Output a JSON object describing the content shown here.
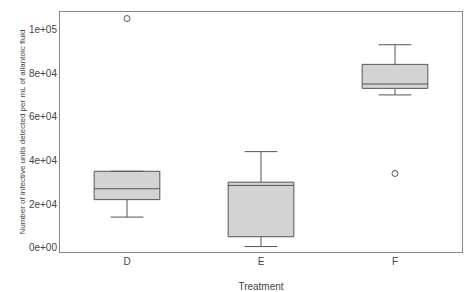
{
  "chart_data": {
    "type": "box",
    "xlabel": "Treatment",
    "ylabel": "Number of infective units detected per mL of allantoic fluid",
    "categories": [
      "D",
      "E",
      "F"
    ],
    "boxes": [
      {
        "whislo": 14000,
        "q1": 22000,
        "med": 27000,
        "q3": 35000,
        "whishi": 35000,
        "fliers": [
          105000
        ]
      },
      {
        "whislo": 500,
        "q1": 5000,
        "med": 28500,
        "q3": 30000,
        "whishi": 44000,
        "fliers": []
      },
      {
        "whislo": 70000,
        "q1": 73000,
        "med": 75000,
        "q3": 84000,
        "whishi": 93000,
        "fliers": [
          34000
        ]
      }
    ],
    "ylim": [
      -2000,
      108000
    ],
    "yticks": [
      {
        "value": 0,
        "label": "0e+00"
      },
      {
        "value": 20000,
        "label": "2e+04"
      },
      {
        "value": 40000,
        "label": "4e+04"
      },
      {
        "value": 60000,
        "label": "6e+04"
      },
      {
        "value": 80000,
        "label": "8e+04"
      },
      {
        "value": 100000,
        "label": "1e+05"
      }
    ],
    "color": "#d3d3d3",
    "grid": false
  }
}
